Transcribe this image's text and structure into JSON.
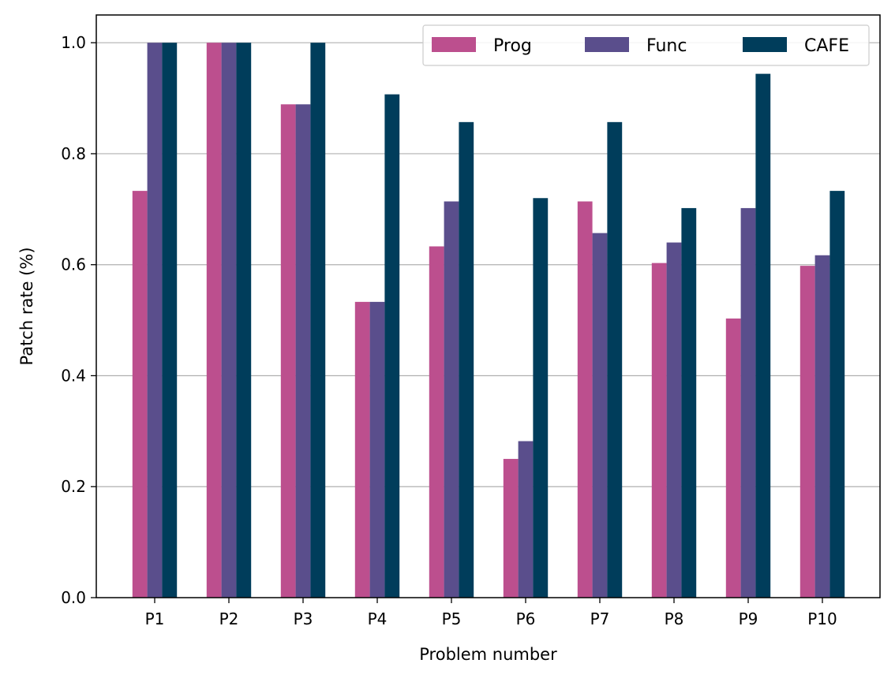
{
  "chart_data": {
    "type": "bar",
    "title": "",
    "xlabel": "Problem number",
    "ylabel": "Patch rate (%)",
    "categories": [
      "P1",
      "P2",
      "P3",
      "P4",
      "P5",
      "P6",
      "P7",
      "P8",
      "P9",
      "P10"
    ],
    "series": [
      {
        "name": "Prog",
        "color": "#bc4f8e",
        "values": [
          0.733,
          1.0,
          0.889,
          0.533,
          0.633,
          0.25,
          0.714,
          0.603,
          0.503,
          0.598
        ]
      },
      {
        "name": "Func",
        "color": "#5a4e8c",
        "values": [
          1.0,
          1.0,
          0.889,
          0.533,
          0.714,
          0.282,
          0.657,
          0.64,
          0.702,
          0.617
        ]
      },
      {
        "name": "CAFE",
        "color": "#003d5b",
        "values": [
          1.0,
          1.0,
          1.0,
          0.907,
          0.857,
          0.72,
          0.857,
          0.702,
          0.944,
          0.733
        ]
      }
    ],
    "ylim": [
      0,
      1.05
    ],
    "yticks": [
      "0.0",
      "0.2",
      "0.4",
      "0.6",
      "0.8",
      "1.0"
    ],
    "grid": "y",
    "legend_position": "top-right"
  }
}
